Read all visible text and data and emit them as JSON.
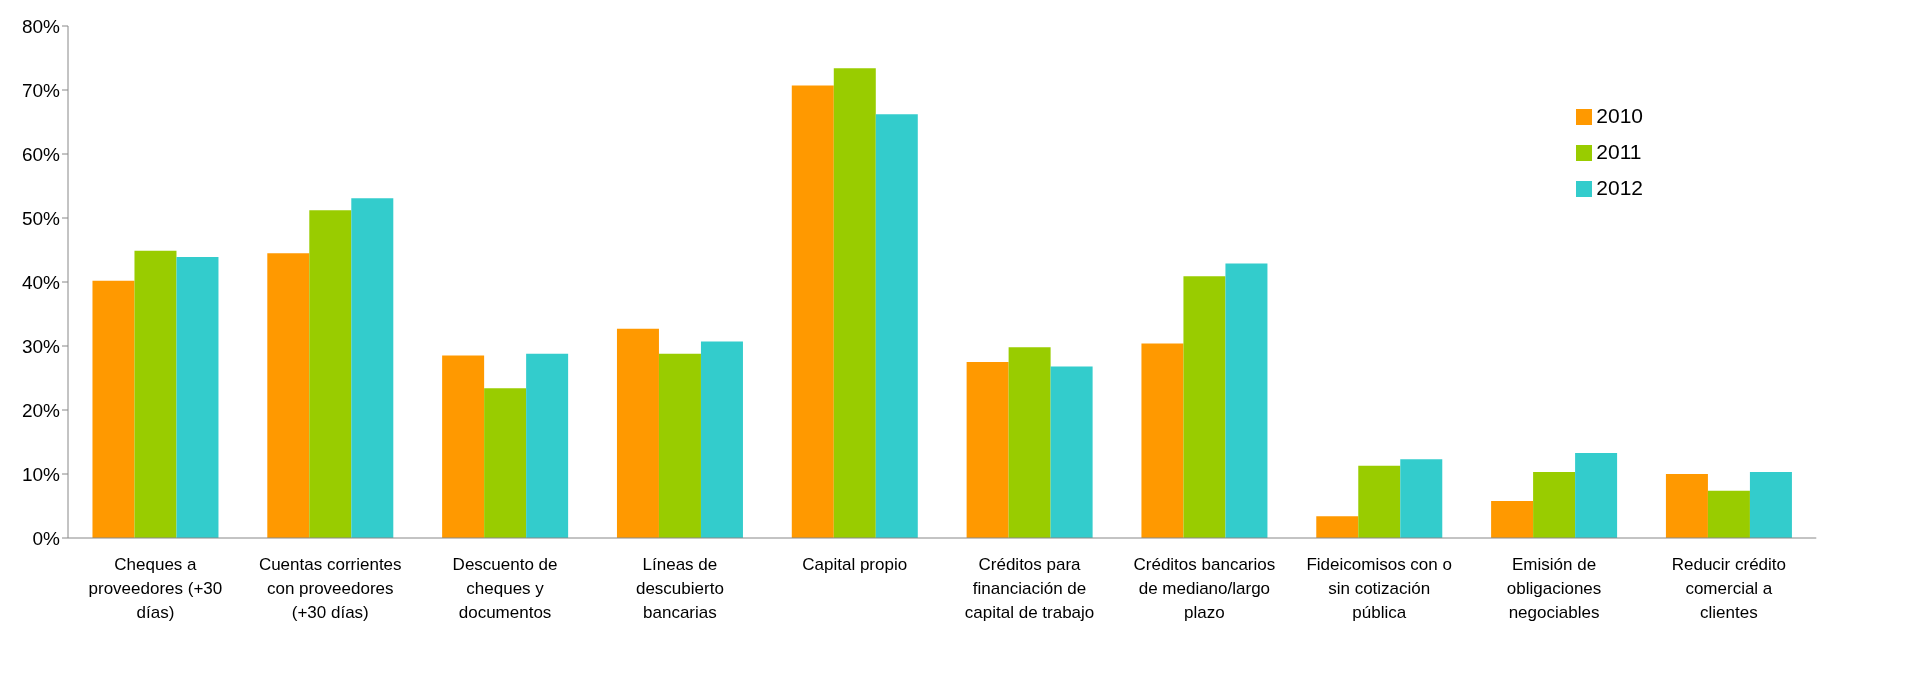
{
  "chart_data": {
    "type": "bar",
    "categories": [
      "Cheques a proveedores (+30 días)",
      "Cuentas corrientes con proveedores (+30 días)",
      "Descuento de cheques y documentos",
      "Líneas de descubierto bancarias",
      "Capital propio",
      "Créditos para financiación de capital de trabajo",
      "Créditos bancarios de mediano/largo plazo",
      "Fideicomisos con o sin cotización pública",
      "Emisión de obligaciones negociables",
      "Reducir crédito comercial a clientes"
    ],
    "series": [
      {
        "name": "2010",
        "color": "#ff9900",
        "values": [
          40.2,
          44.5,
          28.5,
          32.7,
          70.7,
          27.5,
          30.4,
          3.4,
          5.8,
          10.0
        ]
      },
      {
        "name": "2011",
        "color": "#99cc00",
        "values": [
          44.9,
          51.2,
          23.4,
          28.8,
          73.4,
          29.8,
          40.9,
          11.3,
          10.3,
          7.4
        ]
      },
      {
        "name": "2012",
        "color": "#33cccc",
        "values": [
          43.9,
          53.1,
          28.8,
          30.7,
          66.2,
          26.8,
          42.9,
          12.3,
          13.3,
          10.3
        ]
      }
    ],
    "ylim": [
      0,
      80
    ],
    "yticks": [
      {
        "value": 0,
        "label": "0%"
      },
      {
        "value": 10,
        "label": "10%"
      },
      {
        "value": 20,
        "label": "20%"
      },
      {
        "value": 30,
        "label": "30%"
      },
      {
        "value": 40,
        "label": "40%"
      },
      {
        "value": 50,
        "label": "50%"
      },
      {
        "value": 60,
        "label": "60%"
      },
      {
        "value": 70,
        "label": "70%"
      },
      {
        "value": 80,
        "label": "80%"
      }
    ],
    "grid": false,
    "legend": "top right"
  }
}
